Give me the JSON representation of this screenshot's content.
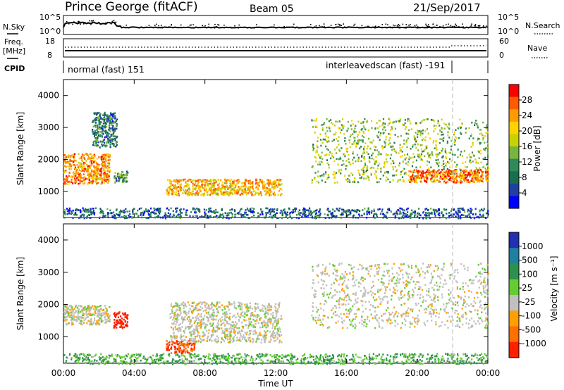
{
  "header": {
    "station": "Prince George (fitACF)",
    "beam": "Beam 05",
    "date": "21/Sep/2017"
  },
  "top_panels": {
    "nsky_label": "N.Sky",
    "nsky_ticks": [
      "10^5",
      "10^0"
    ],
    "nsearch_label": "N.Search",
    "nsearch_ticks": [
      "10^5",
      "10^0"
    ],
    "freq_label_1": "Freq.",
    "freq_label_2": "[MHz]",
    "freq_ticks": [
      "18",
      "8"
    ],
    "nave_label": "Nave",
    "nave_ticks": [
      "60",
      "0"
    ],
    "cpid_label": "CPID",
    "cpid_modes": [
      {
        "label": "normal (fast) 151",
        "start": "00:00",
        "end": "21:50"
      },
      {
        "label": "interleavedscan (fast) -191",
        "start": "21:50",
        "end": "24:00"
      }
    ]
  },
  "colorbars": {
    "power": {
      "label": "Power [dB]",
      "ticks": [
        "28",
        "24",
        "20",
        "16",
        "12",
        "8",
        "4"
      ],
      "colors": [
        "#ff0000",
        "#ff5a00",
        "#ff9b00",
        "#ffd200",
        "#c8d200",
        "#7ab440",
        "#2e8b57",
        "#1a6e50",
        "#2040a0",
        "#0000ff"
      ]
    },
    "velocity": {
      "label": "Velocity [m s⁻¹]",
      "ticks": [
        "1000",
        "500",
        "100",
        "25",
        "-25",
        "-100",
        "-500",
        "-1000"
      ],
      "colors": [
        "#2030b0",
        "#2080a0",
        "#2f8f4f",
        "#66cc33",
        "#c0c0c0",
        "#ffa000",
        "#ff7000",
        "#ff2000"
      ]
    }
  },
  "x_axis": {
    "label": "Time UT",
    "ticks": [
      "00:00",
      "04:00",
      "08:00",
      "12:00",
      "16:00",
      "20:00",
      "00:00"
    ]
  },
  "chart_data": [
    {
      "type": "heatmap",
      "title": "",
      "ylabel": "Slant Range [km]",
      "xlabel": "",
      "xlim_hours": [
        0,
        24
      ],
      "ylim_km": [
        180,
        4500
      ],
      "yticks": [
        1000,
        2000,
        3000,
        4000
      ],
      "colorbar": "Power [dB]",
      "regions": [
        {
          "t": [
            0.0,
            2.6
          ],
          "range_km": [
            1250,
            2200
          ],
          "power_db": 24
        },
        {
          "t": [
            1.6,
            3.0
          ],
          "range_km": [
            2400,
            3500
          ],
          "power_db": 10
        },
        {
          "t": [
            2.8,
            3.6
          ],
          "range_km": [
            1300,
            1650
          ],
          "power_db": 12
        },
        {
          "t": [
            5.8,
            12.3
          ],
          "range_km": [
            900,
            1400
          ],
          "power_db": 22
        },
        {
          "t": [
            14.0,
            24.0
          ],
          "range_km": [
            1300,
            3300
          ],
          "power_db": 16
        },
        {
          "t": [
            19.5,
            24.0
          ],
          "range_km": [
            1300,
            1700
          ],
          "power_db": 26
        },
        {
          "t": [
            0.0,
            24.0
          ],
          "range_km": [
            180,
            500
          ],
          "power_db": 8
        }
      ]
    },
    {
      "type": "heatmap",
      "title": "",
      "ylabel": "Slant Range [km]",
      "xlabel": "Time UT",
      "xlim_hours": [
        0,
        24
      ],
      "ylim_km": [
        180,
        4500
      ],
      "yticks": [
        1000,
        2000,
        3000,
        4000
      ],
      "colorbar": "Velocity [m s-1]",
      "regions": [
        {
          "t": [
            0.0,
            2.6
          ],
          "range_km": [
            1400,
            2000
          ],
          "velocity_ms": 0
        },
        {
          "t": [
            2.8,
            3.6
          ],
          "range_km": [
            1300,
            1800
          ],
          "velocity_ms": -450
        },
        {
          "t": [
            5.8,
            7.4
          ],
          "range_km": [
            500,
            900
          ],
          "velocity_ms": -300
        },
        {
          "t": [
            6.0,
            12.3
          ],
          "range_km": [
            850,
            2100
          ],
          "velocity_ms": 0
        },
        {
          "t": [
            14.0,
            24.0
          ],
          "range_km": [
            1300,
            3300
          ],
          "velocity_ms": 0
        },
        {
          "t": [
            0.0,
            24.0
          ],
          "range_km": [
            180,
            500
          ],
          "velocity_ms": 60
        }
      ]
    }
  ]
}
